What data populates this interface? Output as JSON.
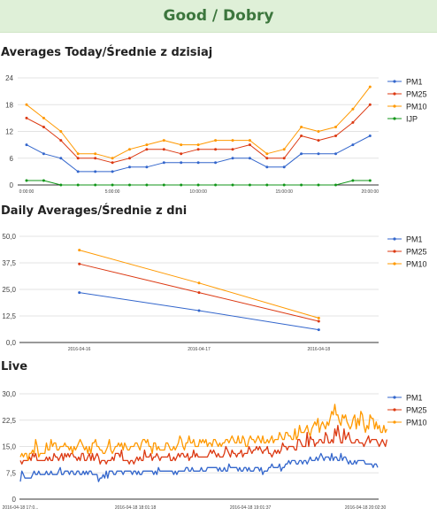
{
  "status": {
    "label": "Good / Dobry",
    "color": "#3c763d",
    "background": "#dff0d8"
  },
  "colors": {
    "PM1": "#3366cc",
    "PM25": "#dc3912",
    "PM10": "#ff9900",
    "IJP": "#109618"
  },
  "chart_data": [
    {
      "type": "line",
      "title": "Averages Today/Średnie z dzisiaj",
      "xlabel": "",
      "ylabel": "",
      "ylim": [
        0,
        24
      ],
      "yticks": [
        "0",
        "6",
        "12",
        "18",
        "24"
      ],
      "xlim": [
        0,
        20.5
      ],
      "xticks": [
        {
          "x": 0,
          "label": "0:00:00"
        },
        {
          "x": 5,
          "label": "5:00:00"
        },
        {
          "x": 10,
          "label": "10:00:00"
        },
        {
          "x": 15,
          "label": "15:00:00"
        },
        {
          "x": 20,
          "label": "20:00:00"
        }
      ],
      "x": [
        0,
        1,
        2,
        3,
        4,
        5,
        6,
        7,
        8,
        9,
        10,
        11,
        12,
        13,
        14,
        15,
        16,
        17,
        18,
        19,
        20
      ],
      "grid": true,
      "legend_position": "right",
      "series": [
        {
          "name": "PM1",
          "values": [
            9,
            7,
            6,
            3,
            3,
            3,
            4,
            4,
            5,
            5,
            5,
            5,
            6,
            6,
            4,
            4,
            7,
            7,
            7,
            9,
            11
          ]
        },
        {
          "name": "PM25",
          "values": [
            15,
            13,
            10,
            6,
            6,
            5,
            6,
            8,
            8,
            7,
            8,
            8,
            8,
            9,
            6,
            6,
            11,
            10,
            11,
            14,
            18
          ]
        },
        {
          "name": "PM10",
          "values": [
            18,
            15,
            12,
            7,
            7,
            6,
            8,
            9,
            10,
            9,
            9,
            10,
            10,
            10,
            7,
            8,
            13,
            12,
            13,
            17,
            22
          ]
        },
        {
          "name": "IJP",
          "values": [
            1,
            1,
            0,
            0,
            0,
            0,
            0,
            0,
            0,
            0,
            0,
            0,
            0,
            0,
            0,
            0,
            0,
            0,
            0,
            1,
            1
          ]
        }
      ]
    },
    {
      "type": "line",
      "title": "Daily Averages/Średnie z dni",
      "xlabel": "",
      "ylabel": "",
      "ylim": [
        0,
        50
      ],
      "yticks": [
        "0,0",
        "12,5",
        "25,0",
        "37,5",
        "50,0"
      ],
      "categories": [
        "2016-04-16",
        "2016-04-17",
        "2016-04-18"
      ],
      "grid": true,
      "legend_position": "right",
      "series": [
        {
          "name": "PM1",
          "values": [
            23.5,
            15,
            6
          ]
        },
        {
          "name": "PM25",
          "values": [
            37,
            23.5,
            10
          ]
        },
        {
          "name": "PM10",
          "values": [
            43.5,
            28,
            11.5
          ]
        }
      ]
    },
    {
      "type": "line",
      "title": "Live",
      "xlabel": "",
      "ylabel": "",
      "ylim": [
        0,
        30
      ],
      "yticks": [
        "0",
        "7,5",
        "15,0",
        "22,5",
        "30,0"
      ],
      "xticks": [
        "2016-04-18 17:0...",
        "2016-04-18 18:01:18",
        "2016-04-18 19:01:37",
        "2016-04-18 20:02:30"
      ],
      "grid": true,
      "legend_position": "right",
      "series": [
        {
          "name": "PM1",
          "values": [
            5,
            8,
            7,
            6,
            6,
            6,
            6,
            6,
            7,
            8,
            7,
            7,
            8,
            7,
            7,
            7,
            7,
            8,
            7,
            7,
            8,
            7,
            7,
            7,
            7,
            8,
            9,
            7,
            7,
            8,
            8,
            8,
            7,
            8,
            8,
            7,
            7,
            8,
            8,
            7,
            7,
            8,
            7,
            8,
            7,
            8,
            8,
            7,
            7,
            7,
            7,
            5,
            6,
            6,
            7,
            6,
            8,
            6,
            8,
            8,
            8,
            7,
            7,
            8,
            8,
            8,
            8,
            7,
            8,
            8,
            8,
            8,
            8,
            7,
            8,
            8,
            7,
            8,
            7,
            7,
            8,
            8,
            8,
            8,
            8,
            8,
            8,
            7,
            8,
            7,
            9,
            8,
            8,
            8,
            8,
            8,
            8,
            8,
            8,
            8,
            7,
            8,
            7,
            8,
            8,
            8,
            8,
            8,
            9,
            9,
            8,
            8,
            9,
            8,
            8,
            8,
            8,
            8,
            9,
            8,
            8,
            8,
            9,
            9,
            9,
            9,
            9,
            9,
            9,
            8,
            9,
            8,
            8,
            9,
            8,
            8,
            10,
            9,
            9,
            9,
            9,
            9,
            8,
            9,
            8,
            8,
            9,
            9,
            8,
            9,
            8,
            8,
            8,
            9,
            9,
            9,
            8,
            9,
            7,
            8,
            8,
            8,
            9,
            9,
            10,
            9,
            9,
            9,
            9,
            10,
            8,
            9,
            9,
            10,
            10,
            11,
            10,
            11,
            11,
            11,
            10,
            10,
            11,
            11,
            10,
            11,
            11,
            10,
            11,
            12,
            11,
            11,
            11,
            12,
            11,
            12,
            13,
            12,
            11,
            12,
            12,
            12,
            11,
            13,
            11,
            12,
            12,
            11,
            11,
            13,
            11,
            12,
            12,
            11,
            10,
            11,
            10,
            10,
            11,
            10,
            11,
            11,
            11,
            11,
            11,
            10,
            10,
            10,
            10,
            10,
            9,
            10,
            10,
            9
          ]
        },
        {
          "name": "PM25",
          "values": [
            11,
            10,
            11,
            11,
            11,
            11,
            12,
            11,
            13,
            12,
            13,
            11,
            11,
            11,
            11,
            11,
            11,
            12,
            11,
            12,
            11,
            11,
            13,
            12,
            12,
            11,
            12,
            13,
            11,
            13,
            12,
            13,
            12,
            13,
            13,
            12,
            12,
            11,
            12,
            11,
            13,
            13,
            11,
            11,
            12,
            13,
            11,
            13,
            11,
            12,
            13,
            12,
            10,
            11,
            11,
            11,
            10,
            11,
            11,
            11,
            12,
            11,
            13,
            13,
            13,
            12,
            14,
            11,
            11,
            11,
            11,
            10,
            11,
            11,
            10,
            11,
            12,
            11,
            12,
            11,
            11,
            14,
            12,
            12,
            12,
            13,
            11,
            12,
            12,
            13,
            12,
            11,
            12,
            12,
            12,
            12,
            12,
            13,
            11,
            11,
            12,
            11,
            12,
            13,
            12,
            13,
            13,
            12,
            12,
            13,
            11,
            12,
            12,
            14,
            12,
            13,
            12,
            12,
            12,
            12,
            12,
            12,
            12,
            13,
            14,
            13,
            14,
            13,
            12,
            13,
            12,
            12,
            12,
            13,
            15,
            14,
            13,
            12,
            14,
            13,
            13,
            12,
            13,
            13,
            14,
            12,
            13,
            13,
            13,
            15,
            14,
            13,
            14,
            14,
            15,
            14,
            15,
            14,
            13,
            14,
            14,
            15,
            13,
            13,
            12,
            13,
            14,
            13,
            14,
            13,
            14,
            16,
            15,
            15,
            14,
            15,
            15,
            15,
            15,
            14,
            14,
            17,
            17,
            16,
            15,
            15,
            15,
            19,
            15,
            18,
            17,
            17,
            15,
            16,
            16,
            17,
            17,
            16,
            16,
            19,
            18,
            16,
            16,
            17,
            16,
            20,
            18,
            21,
            18,
            16,
            16,
            20,
            17,
            18,
            19,
            17,
            16,
            16,
            16,
            17,
            17,
            16,
            16,
            16,
            15,
            16,
            17,
            18,
            16,
            17,
            17,
            17,
            17,
            16,
            15,
            16,
            17,
            16,
            15,
            17
          ]
        },
        {
          "name": "PM10",
          "values": [
            12,
            13,
            12,
            13,
            13,
            11,
            13,
            13,
            14,
            13,
            17,
            15,
            12,
            13,
            13,
            13,
            13,
            16,
            14,
            14,
            17,
            15,
            16,
            16,
            14,
            14,
            15,
            15,
            15,
            16,
            15,
            15,
            14,
            15,
            13,
            15,
            14,
            15,
            16,
            17,
            16,
            15,
            14,
            15,
            13,
            15,
            13,
            16,
            16,
            17,
            15,
            15,
            14,
            14,
            13,
            13,
            14,
            15,
            17,
            14,
            13,
            14,
            15,
            15,
            16,
            15,
            16,
            14,
            16,
            15,
            14,
            14,
            15,
            15,
            15,
            16,
            16,
            15,
            14,
            16,
            17,
            17,
            16,
            17,
            15,
            15,
            13,
            16,
            16,
            14,
            15,
            14,
            14,
            14,
            14,
            16,
            16,
            15,
            14,
            14,
            15,
            14,
            15,
            16,
            18,
            17,
            15,
            14,
            16,
            16,
            18,
            16,
            16,
            17,
            15,
            15,
            15,
            17,
            16,
            17,
            16,
            17,
            15,
            16,
            16,
            15,
            17,
            17,
            16,
            15,
            16,
            15,
            16,
            16,
            17,
            17,
            16,
            17,
            18,
            17,
            16,
            16,
            18,
            16,
            16,
            18,
            17,
            15,
            15,
            17,
            18,
            17,
            17,
            16,
            17,
            18,
            17,
            16,
            18,
            16,
            16,
            17,
            16,
            17,
            18,
            16,
            17,
            17,
            17,
            19,
            18,
            17,
            17,
            19,
            19,
            18,
            18,
            17,
            17,
            20,
            17,
            18,
            21,
            19,
            19,
            19,
            20,
            21,
            19,
            18,
            20,
            21,
            22,
            21,
            23,
            19,
            21,
            22,
            21,
            20,
            22,
            21,
            23,
            25,
            24,
            27,
            24,
            24,
            22,
            21,
            24,
            23,
            24,
            22,
            21,
            20,
            21,
            23,
            24,
            20,
            23,
            21,
            25,
            24,
            21,
            19,
            21,
            20,
            24,
            23,
            23,
            20,
            22,
            20,
            21,
            19,
            19,
            21,
            19,
            20
          ]
        }
      ]
    }
  ]
}
